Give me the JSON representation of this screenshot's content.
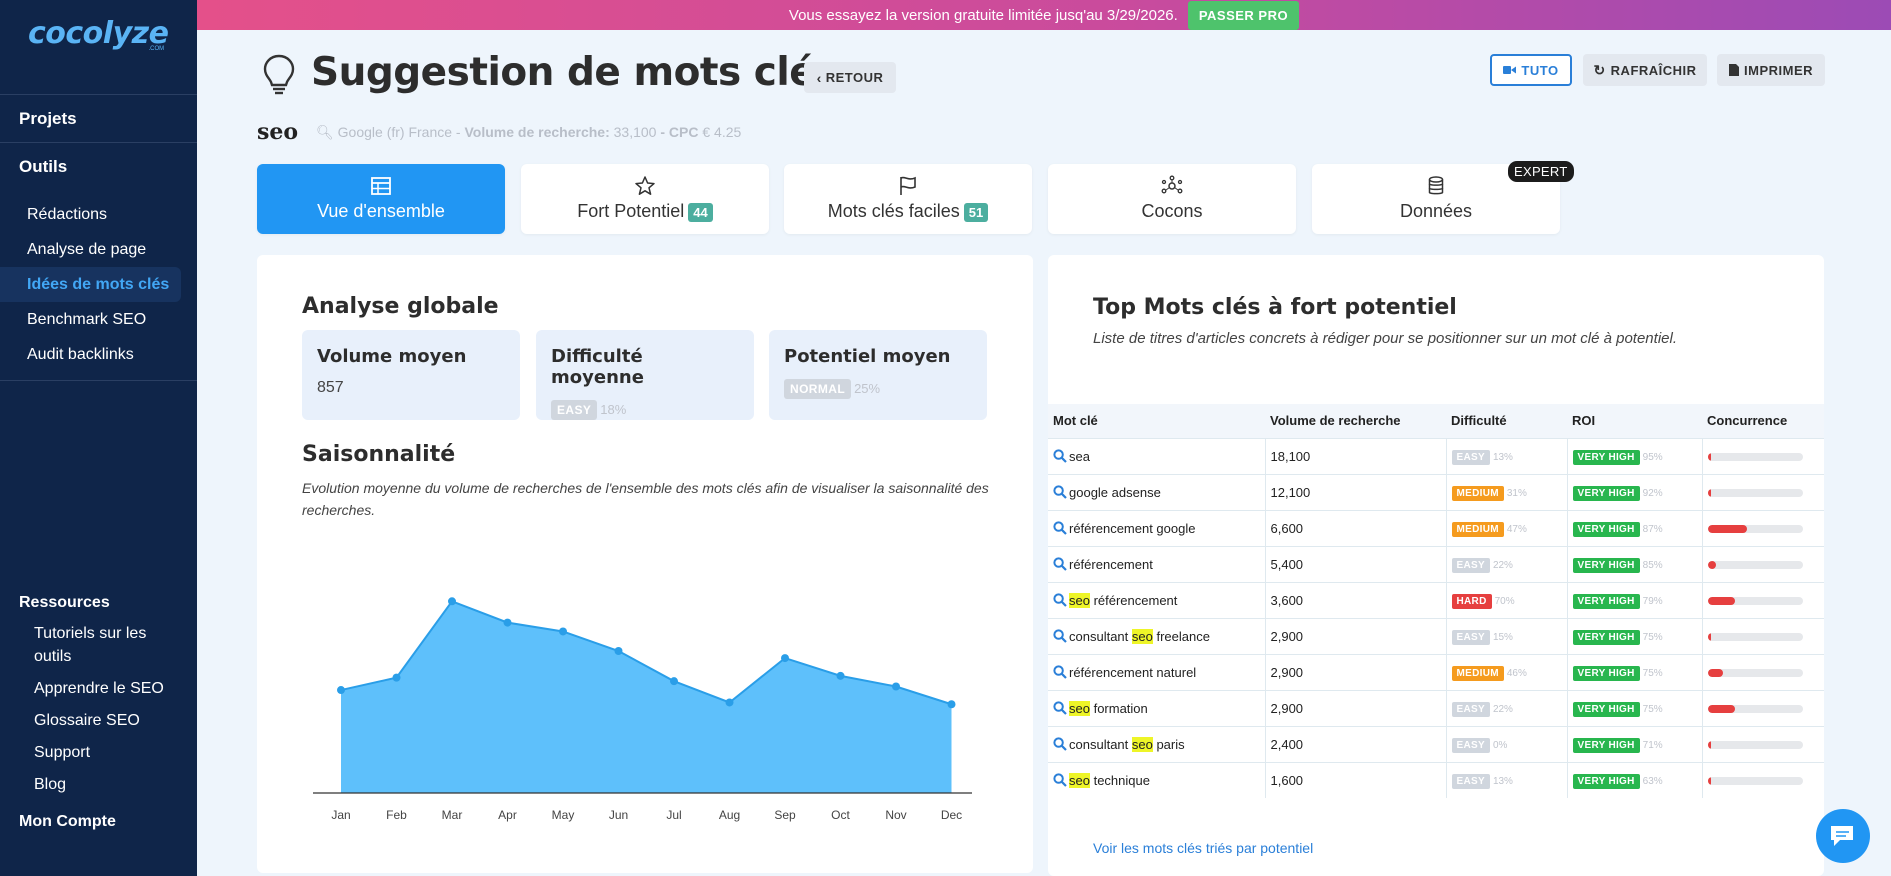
{
  "banner": {
    "text": "Vous essayez la version gratuite limitée jusq'au 3/29/2026.",
    "cta": "PASSER PRO"
  },
  "sidebar": {
    "logo": "cocolyze",
    "logo_sub": ".COM",
    "projects": "Projets",
    "tools": "Outils",
    "items": [
      {
        "label": "Rédactions"
      },
      {
        "label": "Analyse de page"
      },
      {
        "label": "Idées de mots clés"
      },
      {
        "label": "Benchmark SEO"
      },
      {
        "label": "Audit backlinks"
      }
    ],
    "resources": "Ressources",
    "res_items": [
      {
        "label": "Tutoriels sur les outils"
      },
      {
        "label": "Apprendre le SEO"
      },
      {
        "label": "Glossaire SEO"
      },
      {
        "label": "Support"
      },
      {
        "label": "Blog"
      }
    ],
    "account": "Mon Compte"
  },
  "header": {
    "title": "Suggestion de mots clés",
    "back": "RETOUR",
    "tuto": "TUTO",
    "refresh": "RAFRAÎCHIR",
    "print": "IMPRIMER"
  },
  "keyword": {
    "term": "seo",
    "source": "Google (fr) France -",
    "volume_label": "Volume de recherche:",
    "volume": "33,100",
    "cpc_label": "- CPC",
    "cpc": "€ 4.25"
  },
  "tabs": [
    {
      "label": "Vue d'ensemble",
      "icon": "table-icon"
    },
    {
      "label": "Fort Potentiel",
      "count": "44",
      "icon": "star-icon"
    },
    {
      "label": "Mots clés faciles",
      "count": "51",
      "icon": "flag-icon"
    },
    {
      "label": "Cocons",
      "icon": "network-icon"
    },
    {
      "label": "Données",
      "icon": "database-icon",
      "badge": "EXPERT"
    }
  ],
  "analysis": {
    "title": "Analyse globale",
    "volume": {
      "label": "Volume moyen",
      "value": "857"
    },
    "difficulty": {
      "label": "Difficulté moyenne",
      "level": "EASY",
      "pct": "18%"
    },
    "potential": {
      "label": "Potentiel moyen",
      "level": "NORMAL",
      "pct": "25%"
    }
  },
  "seasonality": {
    "title": "Saisonnalité",
    "desc": "Evolution moyenne du volume de recherches de l'ensemble des mots clés afin de visualiser la saisonnalité des recherches."
  },
  "chart_data": {
    "type": "area",
    "categories": [
      "Jan",
      "Feb",
      "Mar",
      "Apr",
      "May",
      "Jun",
      "Jul",
      "Aug",
      "Sep",
      "Oct",
      "Nov",
      "Dec"
    ],
    "values": [
      58,
      65,
      108,
      96,
      91,
      80,
      63,
      51,
      76,
      66,
      60,
      50
    ],
    "ylim": [
      0,
      120
    ],
    "color": "#5ec0fb",
    "line_color": "#2a9ee8"
  },
  "top": {
    "title": "Top Mots clés à fort potentiel",
    "subtitle": "Liste de titres d'articles concrets à rédiger pour se positionner sur un mot clé à potentiel.",
    "columns": [
      "Mot clé",
      "Volume de recherche",
      "Difficulté",
      "ROI",
      "Concurrence"
    ],
    "rows": [
      {
        "pre": "",
        "hl": "",
        "post": "sea",
        "volume": "18,100",
        "diff": "EASY",
        "diff_pct": "13%",
        "roi": "VERY HIGH",
        "roi_pct": "95%",
        "comp": 0.02
      },
      {
        "pre": "",
        "hl": "",
        "post": "google adsense",
        "volume": "12,100",
        "diff": "MEDIUM",
        "diff_pct": "31%",
        "roi": "VERY HIGH",
        "roi_pct": "92%",
        "comp": 0.02
      },
      {
        "pre": "",
        "hl": "",
        "post": "référencement google",
        "volume": "6,600",
        "diff": "MEDIUM",
        "diff_pct": "47%",
        "roi": "VERY HIGH",
        "roi_pct": "87%",
        "comp": 0.42
      },
      {
        "pre": "",
        "hl": "",
        "post": "référencement",
        "volume": "5,400",
        "diff": "EASY",
        "diff_pct": "22%",
        "roi": "VERY HIGH",
        "roi_pct": "85%",
        "comp": 0.09
      },
      {
        "pre": "",
        "hl": "seo",
        "post": " référencement",
        "volume": "3,600",
        "diff": "HARD",
        "diff_pct": "70%",
        "roi": "VERY HIGH",
        "roi_pct": "79%",
        "comp": 0.29
      },
      {
        "pre": "consultant ",
        "hl": "seo",
        "post": " freelance",
        "volume": "2,900",
        "diff": "EASY",
        "diff_pct": "15%",
        "roi": "VERY HIGH",
        "roi_pct": "75%",
        "comp": 0.02
      },
      {
        "pre": "",
        "hl": "",
        "post": "référencement naturel",
        "volume": "2,900",
        "diff": "MEDIUM",
        "diff_pct": "46%",
        "roi": "VERY HIGH",
        "roi_pct": "75%",
        "comp": 0.16
      },
      {
        "pre": "",
        "hl": "seo",
        "post": " formation",
        "volume": "2,900",
        "diff": "EASY",
        "diff_pct": "22%",
        "roi": "VERY HIGH",
        "roi_pct": "75%",
        "comp": 0.29
      },
      {
        "pre": "consultant ",
        "hl": "seo",
        "post": " paris",
        "volume": "2,400",
        "diff": "EASY",
        "diff_pct": "0%",
        "roi": "VERY HIGH",
        "roi_pct": "71%",
        "comp": 0.02
      },
      {
        "pre": "",
        "hl": "seo",
        "post": " technique",
        "volume": "1,600",
        "diff": "EASY",
        "diff_pct": "13%",
        "roi": "VERY HIGH",
        "roi_pct": "63%",
        "comp": 0.02
      }
    ],
    "more": "Voir les mots clés triés par potentiel"
  }
}
